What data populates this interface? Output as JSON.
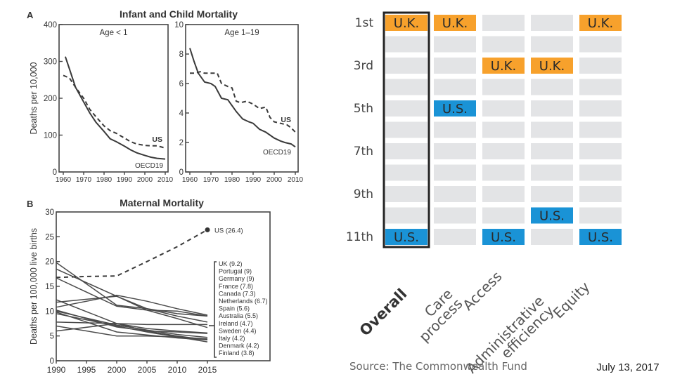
{
  "date": "July 13, 2017",
  "source": "Source: The Commonwealth Fund",
  "chart_data": [
    {
      "id": "A1",
      "type": "line",
      "panel_letter": "A",
      "panel_title": "Infant and Child Mortality",
      "subtitle": "Age < 1",
      "ylabel": "Deaths per 10,000",
      "xlabel": "",
      "xlim": [
        1960,
        2010
      ],
      "ylim": [
        0,
        400
      ],
      "xticks": [
        1960,
        1970,
        1980,
        1990,
        2000,
        2010
      ],
      "yticks": [
        0,
        100,
        200,
        300,
        400
      ],
      "series": [
        {
          "name": "US",
          "style": "dashed",
          "x": [
            1960,
            1963,
            1966,
            1970,
            1973,
            1976,
            1980,
            1983,
            1986,
            1990,
            1993,
            1996,
            2000,
            2003,
            2006,
            2010
          ],
          "values": [
            262,
            255,
            230,
            200,
            170,
            150,
            125,
            112,
            105,
            92,
            82,
            76,
            72,
            71,
            71,
            65
          ]
        },
        {
          "name": "OECD19",
          "style": "solid",
          "x": [
            1961,
            1963,
            1966,
            1970,
            1973,
            1976,
            1980,
            1983,
            1986,
            1990,
            1993,
            1996,
            2000,
            2003,
            2006,
            2010
          ],
          "values": [
            313,
            280,
            230,
            190,
            160,
            135,
            110,
            90,
            82,
            70,
            60,
            52,
            45,
            40,
            37,
            35
          ]
        }
      ]
    },
    {
      "id": "A2",
      "type": "line",
      "subtitle": "Age 1–19",
      "ylabel": "",
      "xlim": [
        1960,
        2010
      ],
      "ylim": [
        0,
        10
      ],
      "xticks": [
        1960,
        1970,
        1980,
        1990,
        2000,
        2010
      ],
      "yticks": [
        0,
        2,
        4,
        6,
        8,
        10
      ],
      "series": [
        {
          "name": "US",
          "style": "dashed",
          "x": [
            1960,
            1962,
            1965,
            1967,
            1970,
            1973,
            1975,
            1978,
            1980,
            1982,
            1984,
            1987,
            1990,
            1993,
            1996,
            1998,
            2000,
            2003,
            2006,
            2008,
            2010
          ],
          "values": [
            6.7,
            6.7,
            6.8,
            6.7,
            6.7,
            6.7,
            6.0,
            5.8,
            5.7,
            4.8,
            4.7,
            4.8,
            4.6,
            4.3,
            4.4,
            3.7,
            3.4,
            3.3,
            3.2,
            3.0,
            2.7
          ]
        },
        {
          "name": "OECD19",
          "style": "solid",
          "x": [
            1960,
            1962,
            1964,
            1967,
            1970,
            1972,
            1975,
            1978,
            1980,
            1982,
            1985,
            1988,
            1990,
            1993,
            1996,
            2000,
            2003,
            2005,
            2008,
            2010
          ],
          "values": [
            8.4,
            7.5,
            6.7,
            6.1,
            6.0,
            5.8,
            5.0,
            4.9,
            4.5,
            4.1,
            3.6,
            3.4,
            3.3,
            2.9,
            2.7,
            2.3,
            2.1,
            2.0,
            1.9,
            1.7
          ]
        }
      ]
    },
    {
      "id": "B",
      "type": "line",
      "panel_letter": "B",
      "panel_title": "Maternal Mortality",
      "ylabel": "Deaths per 100,000 live births",
      "xlim": [
        1990,
        2015
      ],
      "ylim": [
        0,
        30
      ],
      "xticks": [
        1990,
        1995,
        2000,
        2005,
        2010,
        2015
      ],
      "yticks": [
        0,
        5,
        10,
        15,
        20,
        25,
        30
      ],
      "us_series": {
        "name": "US",
        "label": "US (26.4)",
        "style": "dashed",
        "x": [
          1990,
          1995,
          2000,
          2005,
          2010,
          2015
        ],
        "values": [
          16.8,
          17.0,
          17.1,
          20.0,
          23.0,
          26.4
        ]
      },
      "series": [
        {
          "name": "UK",
          "label": "UK (9.2)",
          "x": [
            1990,
            2000,
            2005,
            2010,
            2015
          ],
          "values": [
            10.8,
            13.2,
            12.0,
            10.5,
            9.2
          ]
        },
        {
          "name": "Portugal",
          "label": "Portugal (9)",
          "x": [
            1990,
            2000,
            2005,
            2010,
            2015
          ],
          "values": [
            11.8,
            13.0,
            10.2,
            10.0,
            9.0
          ]
        },
        {
          "name": "Germany",
          "label": "Germany (9)",
          "x": [
            1990,
            2000,
            2005,
            2010,
            2015
          ],
          "values": [
            19.8,
            11.2,
            10.5,
            9.5,
            9.0
          ]
        },
        {
          "name": "France",
          "label": "France (7.8)",
          "x": [
            1990,
            2000,
            2005,
            2010,
            2015
          ],
          "values": [
            18.5,
            13.0,
            10.5,
            9.0,
            7.8
          ]
        },
        {
          "name": "Canada",
          "label": "Canada (7.3)",
          "x": [
            1990,
            2000,
            2005,
            2010,
            2015
          ],
          "values": [
            6.0,
            7.5,
            7.3,
            7.3,
            7.3
          ]
        },
        {
          "name": "Netherlands",
          "label": "Netherlands (6.7)",
          "x": [
            1990,
            2000,
            2005,
            2010,
            2015
          ],
          "values": [
            16.7,
            11.0,
            10.2,
            8.5,
            6.7
          ]
        },
        {
          "name": "Spain",
          "label": "Spain (5.6)",
          "x": [
            1990,
            2000,
            2005,
            2010,
            2015
          ],
          "values": [
            12.3,
            7.5,
            6.5,
            6.0,
            5.6
          ]
        },
        {
          "name": "Australia",
          "label": "Australia (5.5)",
          "x": [
            1990,
            2000,
            2005,
            2010,
            2015
          ],
          "values": [
            7.8,
            7.5,
            6.0,
            5.8,
            5.5
          ]
        },
        {
          "name": "Ireland",
          "label": "Ireland (4.7)",
          "x": [
            1990,
            2000,
            2005,
            2010,
            2015
          ],
          "values": [
            10.0,
            7.2,
            6.2,
            5.3,
            4.7
          ]
        },
        {
          "name": "Sweden",
          "label": "Sweden (4.4)",
          "x": [
            1990,
            2000,
            2005,
            2010,
            2015
          ],
          "values": [
            7.0,
            5.0,
            5.0,
            4.8,
            4.4
          ]
        },
        {
          "name": "Italy",
          "label": "Italy (4.2)",
          "x": [
            1990,
            2000,
            2005,
            2010,
            2015
          ],
          "values": [
            10.2,
            6.8,
            6.0,
            5.0,
            4.2
          ]
        },
        {
          "name": "Denmark",
          "label": "Denmark (4.2)",
          "x": [
            1990,
            2000,
            2005,
            2010,
            2015
          ],
          "values": [
            9.8,
            5.8,
            5.2,
            4.6,
            4.2
          ]
        },
        {
          "name": "Finland",
          "label": "Finland (3.8)",
          "x": [
            1990,
            2000,
            2005,
            2010,
            2015
          ],
          "values": [
            9.5,
            7.0,
            5.8,
            4.8,
            3.8
          ]
        }
      ]
    },
    {
      "id": "ranking",
      "type": "heatmap",
      "title": "",
      "row_labels": [
        "1st",
        "",
        "3rd",
        "",
        "5th",
        "",
        "7th",
        "",
        "9th",
        "",
        "11th"
      ],
      "categories": [
        "Overall",
        "Care process",
        "Access",
        "Administrative efficiency",
        "Equity"
      ],
      "category_label_lines": [
        [
          "Overall"
        ],
        [
          "Care",
          "process"
        ],
        [
          "Access"
        ],
        [
          "Administrative",
          "efficiency"
        ],
        [
          "Equity"
        ]
      ],
      "highlight_category": "Overall",
      "colors": {
        "UK": "#f7a12c",
        "US": "#1a93d6",
        "empty": "#e3e4e6",
        "text": "#2a2a2a"
      },
      "entries": [
        {
          "country": "UK",
          "label": "U.K.",
          "ranks": [
            1,
            1,
            3,
            3,
            1
          ]
        },
        {
          "country": "US",
          "label": "U.S.",
          "ranks": [
            11,
            5,
            11,
            10,
            11
          ]
        }
      ],
      "num_ranks": 11
    }
  ]
}
